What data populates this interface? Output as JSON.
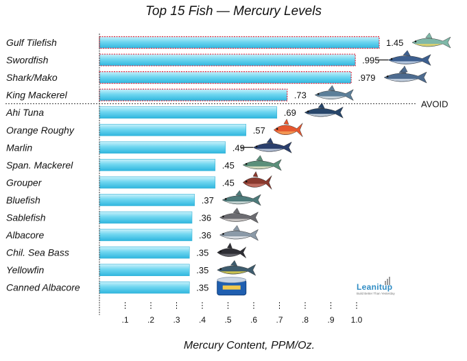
{
  "chart_data": {
    "type": "bar",
    "orientation": "horizontal",
    "title": "Top 15 Fish — Mercury Levels",
    "xlabel": "Mercury Content, PPM/Oz.",
    "ylabel": "",
    "xlim": [
      0,
      1.0
    ],
    "x_ticks": [
      ".1",
      ".2",
      ".3",
      ".4",
      ".5",
      ".6",
      ".7",
      ".8",
      ".9",
      "1.0"
    ],
    "grid": false,
    "categories": [
      "Gulf Tilefish",
      "Swordfish",
      "Shark/Mako",
      "King Mackerel",
      "Ahi Tuna",
      "Orange Roughy",
      "Marlin",
      "Span. Mackerel",
      "Grouper",
      "Bluefish",
      "Sablefish",
      "Albacore",
      "Chil. Sea Bass",
      "Yellowfin",
      "Canned Albacore"
    ],
    "values": [
      1.45,
      0.995,
      0.979,
      0.73,
      0.69,
      0.57,
      0.49,
      0.45,
      0.45,
      0.37,
      0.36,
      0.36,
      0.35,
      0.35,
      0.35
    ],
    "value_labels": [
      "1.45",
      ".995",
      ".979",
      ".73",
      ".69",
      ".57",
      ".49",
      ".45",
      ".45",
      ".37",
      ".36",
      ".36",
      ".35",
      ".35",
      ".35"
    ],
    "threshold_label": "AVOID",
    "avoid_count": 4,
    "bar_color": "#4fc8e8",
    "avoid_outline_color": "#e0263c"
  },
  "icons": [
    "tilefish-icon",
    "swordfish-icon",
    "shark-icon",
    "king-mackerel-icon",
    "ahi-tuna-icon",
    "orange-roughy-icon",
    "marlin-icon",
    "spanish-mackerel-icon",
    "grouper-icon",
    "bluefish-icon",
    "sablefish-icon",
    "albacore-icon",
    "sea-bass-icon",
    "yellowfin-icon",
    "canned-tuna-icon"
  ],
  "logo": {
    "name": "LeanItUp",
    "tagline": "Build Better Than Yesterday"
  }
}
